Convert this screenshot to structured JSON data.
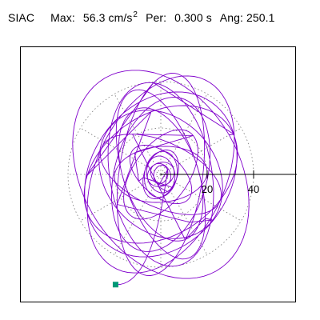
{
  "header": {
    "station": "SIAC",
    "max_label": "Max:",
    "max_value": "56.3 cm/s",
    "max_exp": "2",
    "per_label": "Per:",
    "per_value": "0.300 s",
    "ang_label": "Ang:",
    "ang_value": "250.1"
  },
  "chart_data": {
    "type": "polar-orbit",
    "title": "",
    "xlabel": "",
    "ylabel": "",
    "radial_ticks": [
      20,
      40
    ],
    "radial_tick_labels": [
      "20",
      "40"
    ],
    "radial_grid_style": "dotted",
    "axis_angle_deg": 0,
    "max_amplitude": 56.3,
    "peak_angle_deg": 250.1,
    "trace_color": "#8000cc",
    "marker_color": "#009977",
    "end_marker": {
      "x": -19.5,
      "y": -47.5
    },
    "loops": [
      {
        "ex": 34,
        "ey": 48,
        "rot": 30
      },
      {
        "ex": 28,
        "ey": 45,
        "rot": -25
      },
      {
        "ex": 22,
        "ey": 40,
        "rot": 10
      },
      {
        "ex": 38,
        "ey": 30,
        "rot": 55
      },
      {
        "ex": 26,
        "ey": 36,
        "rot": -55
      },
      {
        "ex": 18,
        "ey": 44,
        "rot": -8
      },
      {
        "ex": 34,
        "ey": 20,
        "rot": 75
      },
      {
        "ex": 24,
        "ey": 30,
        "rot": 40
      },
      {
        "ex": 16,
        "ey": 38,
        "rot": 18
      },
      {
        "ex": 30,
        "ey": 16,
        "rot": -70
      },
      {
        "ex": 14,
        "ey": 28,
        "rot": 65
      },
      {
        "ex": 12,
        "ey": 22,
        "rot": -35
      },
      {
        "ex": 20,
        "ey": 12,
        "rot": 5
      },
      {
        "ex": 9,
        "ey": 16,
        "rot": 48
      },
      {
        "ex": 7,
        "ey": 11,
        "rot": -22
      },
      {
        "ex": 10,
        "ey": 7,
        "rot": 80
      },
      {
        "ex": 6,
        "ey": 8,
        "rot": 12
      },
      {
        "ex": 5,
        "ey": 6,
        "rot": -60
      },
      {
        "ex": 4,
        "ey": 5,
        "rot": 35
      },
      {
        "ex": 3,
        "ey": 4,
        "rot": -15
      }
    ]
  }
}
